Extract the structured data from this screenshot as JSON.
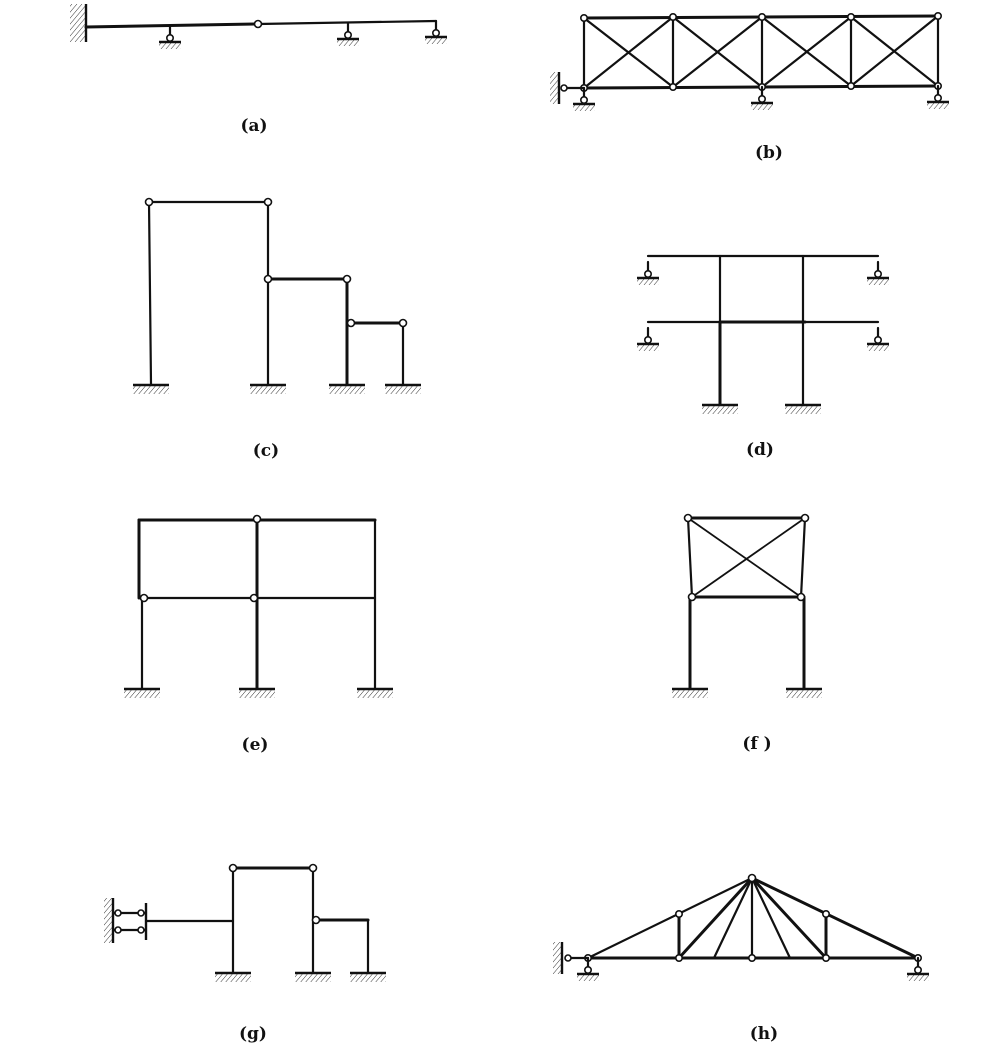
{
  "figure": {
    "panels": [
      {
        "id": "a",
        "caption": "(a)"
      },
      {
        "id": "b",
        "caption": "(b)"
      },
      {
        "id": "c",
        "caption": "(c)"
      },
      {
        "id": "d",
        "caption": "(d)"
      },
      {
        "id": "e",
        "caption": "(e)"
      },
      {
        "id": "f",
        "caption": "(f )"
      },
      {
        "id": "g",
        "caption": "(g)"
      },
      {
        "id": "h",
        "caption": "(h)"
      }
    ]
  }
}
